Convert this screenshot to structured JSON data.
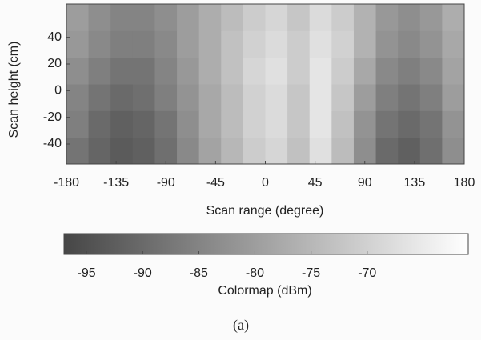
{
  "chart_data": {
    "type": "heatmap",
    "x_label": "Scan range (degree)",
    "y_label": "Scan height (cm)",
    "x": [
      -170,
      -150,
      -130,
      -110,
      -90,
      -70,
      -50,
      -30,
      -10,
      10,
      30,
      50,
      70,
      90,
      110,
      130,
      150,
      170
    ],
    "y": [
      -45,
      -25,
      -5,
      15,
      35,
      55
    ],
    "z": [
      [
        -88,
        -91,
        -93,
        -92,
        -89,
        -84,
        -79,
        -75,
        -71,
        -69,
        -73,
        -67,
        -74,
        -83,
        -90,
        -92,
        -89,
        -83
      ],
      [
        -86,
        -90,
        -92,
        -91,
        -88,
        -83,
        -78,
        -74,
        -70,
        -68,
        -72,
        -66,
        -73,
        -82,
        -88,
        -90,
        -88,
        -82
      ],
      [
        -85,
        -88,
        -90,
        -89,
        -86,
        -82,
        -78,
        -74,
        -70,
        -68,
        -72,
        -66,
        -72,
        -80,
        -86,
        -88,
        -86,
        -80
      ],
      [
        -83,
        -86,
        -88,
        -88,
        -85,
        -81,
        -77,
        -73,
        -69,
        -67,
        -71,
        -66,
        -71,
        -78,
        -84,
        -86,
        -84,
        -79
      ],
      [
        -81,
        -84,
        -86,
        -86,
        -84,
        -80,
        -77,
        -73,
        -70,
        -68,
        -71,
        -67,
        -70,
        -76,
        -82,
        -84,
        -82,
        -78
      ],
      [
        -80,
        -83,
        -85,
        -85,
        -83,
        -80,
        -77,
        -74,
        -71,
        -69,
        -72,
        -68,
        -71,
        -76,
        -81,
        -83,
        -81,
        -77
      ]
    ],
    "xlim": [
      -180,
      180
    ],
    "ylim": [
      -55,
      65
    ],
    "xticks": [
      -180,
      -135,
      -90,
      -45,
      0,
      45,
      90,
      135,
      180
    ],
    "yticks": [
      -40,
      -20,
      0,
      20,
      40
    ],
    "colorbar": {
      "label": "Colormap (dBm)",
      "clim": [
        -97,
        -61
      ],
      "ticks": [
        -95,
        -90,
        -85,
        -80,
        -75,
        -70
      ],
      "colors": [
        "#464646",
        "#ffffff"
      ]
    },
    "caption": "(a)"
  }
}
